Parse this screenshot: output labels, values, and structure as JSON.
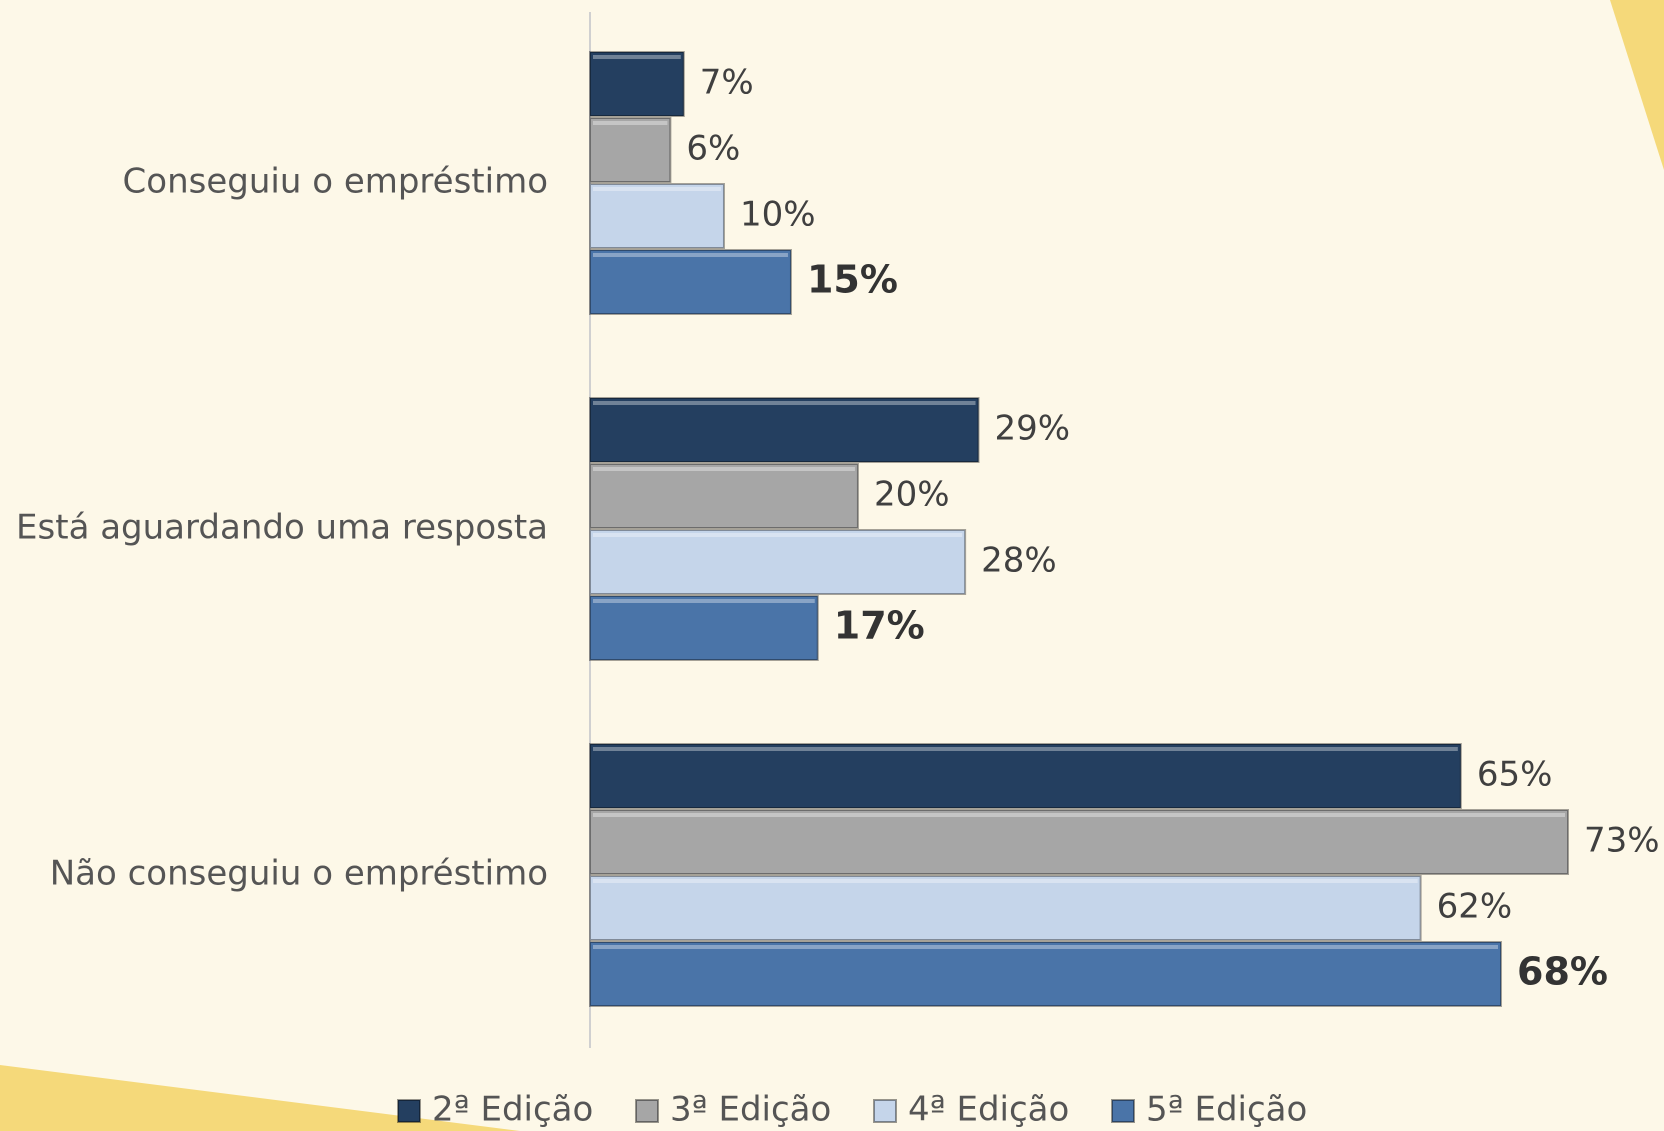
{
  "chart_data": {
    "type": "bar",
    "orientation": "horizontal",
    "categories": [
      "Conseguiu o empréstimo",
      "Está aguardando uma resposta",
      "Não conseguiu o empréstimo"
    ],
    "series": [
      {
        "name": "2ª Edição",
        "color": "#243f60",
        "values": [
          7,
          29,
          65
        ],
        "value_labels": [
          "7%",
          "29%",
          "65%"
        ]
      },
      {
        "name": "3ª Edição",
        "color": "#a6a6a6",
        "values": [
          6,
          20,
          73
        ],
        "value_labels": [
          "6%",
          "20%",
          "73%"
        ]
      },
      {
        "name": "4ª Edição",
        "color": "#c5d5ea",
        "values": [
          10,
          28,
          62
        ],
        "value_labels": [
          "10%",
          "28%",
          "62%"
        ]
      },
      {
        "name": "5ª Edição",
        "color": "#4a74a8",
        "values": [
          15,
          17,
          68
        ],
        "value_labels": [
          "15%",
          "17%",
          "68%"
        ]
      }
    ],
    "legend": "bottom"
  }
}
